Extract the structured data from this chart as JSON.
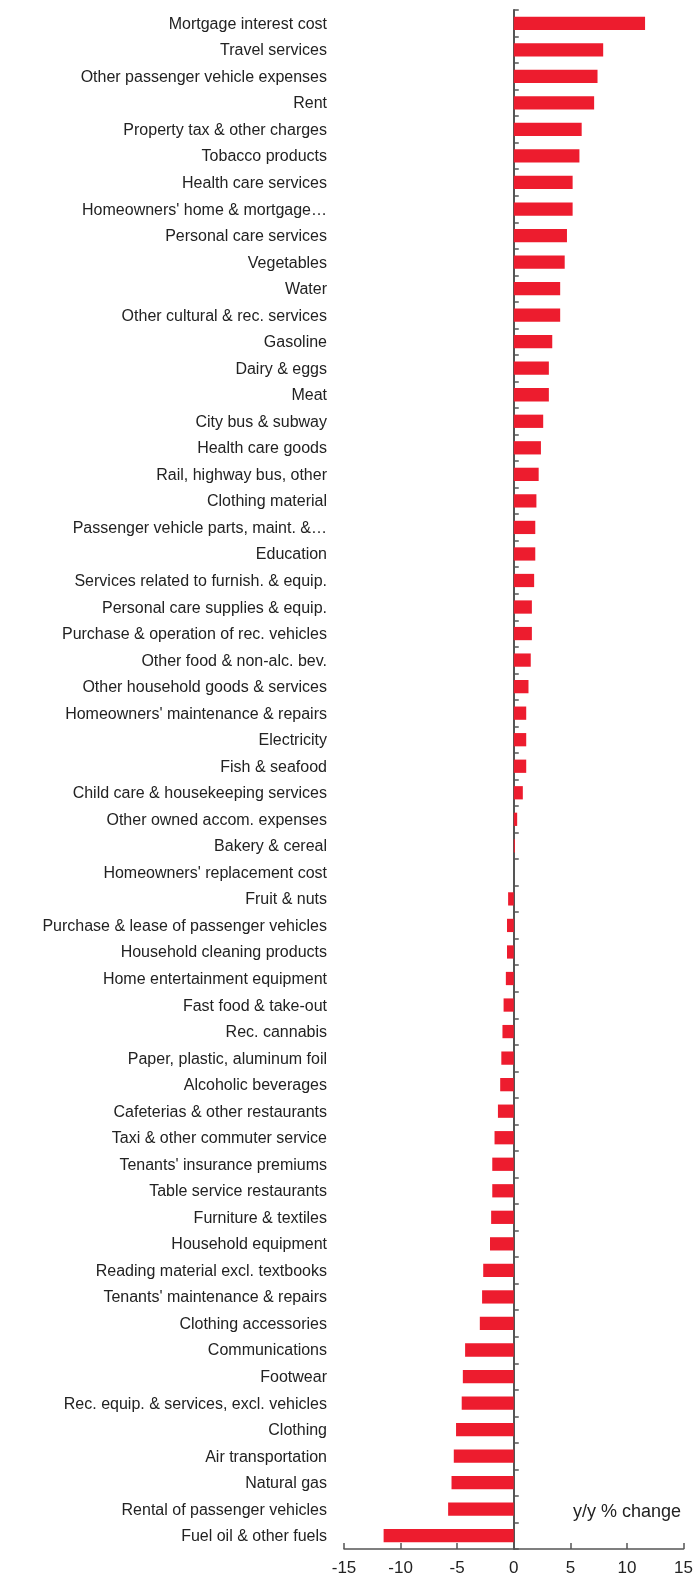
{
  "chart_data": {
    "type": "bar",
    "orientation": "horizontal",
    "xlabel": "y/y % change",
    "color": "#ed1c2e",
    "categories": [
      "Mortgage interest cost",
      "Travel services",
      "Other passenger vehicle expenses",
      "Rent",
      "Property tax & other charges",
      "Tobacco products",
      "Health care services",
      "Homeowners' home & mortgage…",
      "Personal care services",
      "Vegetables",
      "Water",
      "Other cultural & rec. services",
      "Gasoline",
      "Dairy & eggs",
      "Meat",
      "City bus & subway",
      "Health care goods",
      "Rail, highway bus, other",
      "Clothing material",
      "Passenger vehicle parts, maint. &…",
      "Education",
      "Services related to furnish. & equip.",
      "Personal care supplies & equip.",
      "Purchase & operation of rec. vehicles",
      "Other food & non-alc. bev.",
      "Other household goods & services",
      "Homeowners' maintenance & repairs",
      "Electricity",
      "Fish & seafood",
      "Child care & housekeeping services",
      "Other owned accom. expenses",
      "Bakery & cereal",
      "Homeowners' replacement cost",
      "Fruit & nuts",
      "Purchase & lease of passenger vehicles",
      "Household cleaning products",
      "Home entertainment equipment",
      "Fast food & take-out",
      "Rec. cannabis",
      "Paper, plastic, aluminum foil",
      "Alcoholic beverages",
      "Cafeterias & other restaurants",
      "Taxi & other commuter service",
      "Tenants' insurance premiums",
      "Table service restaurants",
      "Furniture & textiles",
      "Household equipment",
      "Reading material excl. textbooks",
      "Tenants' maintenance & repairs",
      "Clothing accessories",
      "Communications",
      "Footwear",
      "Rec. equip. & services, excl. vehicles",
      "Clothing",
      "Air transportation",
      "Natural gas",
      "Rental of passenger vehicles",
      "Fuel oil & other fuels"
    ],
    "values": [
      11.6,
      7.9,
      7.4,
      7.1,
      6.0,
      5.8,
      5.2,
      5.2,
      4.7,
      4.5,
      4.1,
      4.1,
      3.4,
      3.1,
      3.1,
      2.6,
      2.4,
      2.2,
      2.0,
      1.9,
      1.9,
      1.8,
      1.6,
      1.6,
      1.5,
      1.3,
      1.1,
      1.1,
      1.1,
      0.8,
      0.3,
      0.1,
      0,
      -0.5,
      -0.6,
      -0.6,
      -0.7,
      -0.9,
      -1.0,
      -1.1,
      -1.2,
      -1.4,
      -1.7,
      -1.9,
      -1.9,
      -2.0,
      -2.1,
      -2.7,
      -2.8,
      -3.0,
      -4.3,
      -4.5,
      -4.6,
      -5.1,
      -5.3,
      -5.5,
      -5.8,
      -11.5
    ],
    "xlim": [
      -15,
      15
    ],
    "xticks": [
      -15,
      -10,
      -5,
      0,
      5,
      10,
      15
    ]
  }
}
